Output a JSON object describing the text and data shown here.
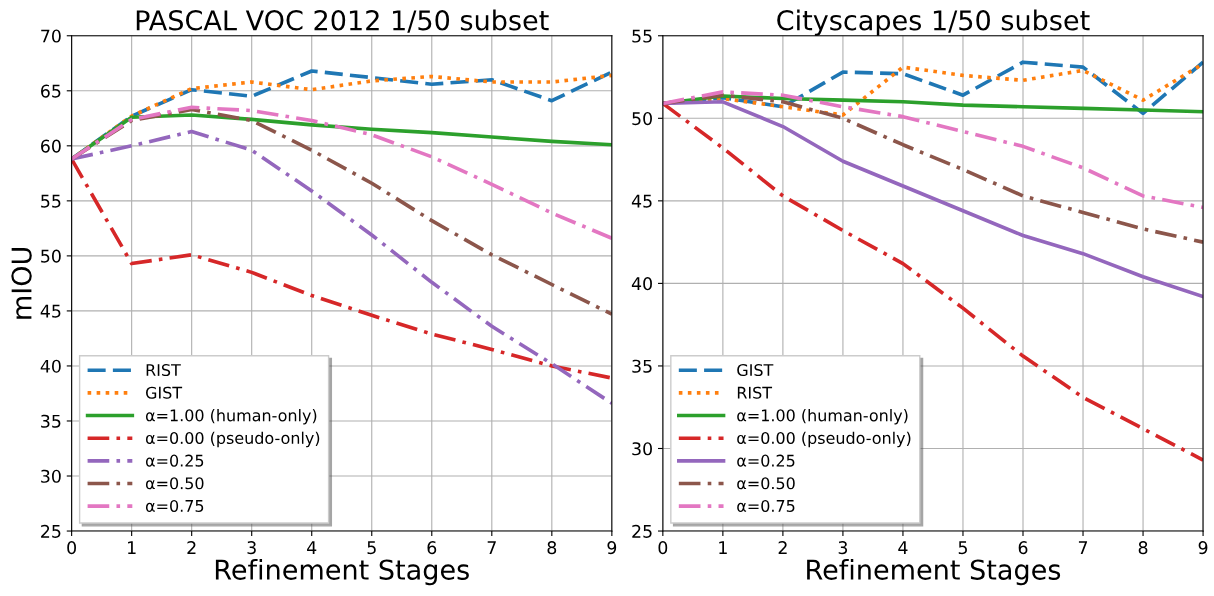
{
  "chart_data": [
    {
      "type": "line",
      "title": "PASCAL VOC 2012 1/50 subset",
      "xlabel": "Refinement Stages",
      "ylabel": "mIOU",
      "x": [
        0,
        1,
        2,
        3,
        4,
        5,
        6,
        7,
        8,
        9
      ],
      "xlim": [
        0,
        9
      ],
      "xticks": [
        0,
        1,
        2,
        3,
        4,
        5,
        6,
        7,
        8,
        9
      ],
      "ylim": [
        25,
        70
      ],
      "yticks": [
        25,
        30,
        35,
        40,
        45,
        50,
        55,
        60,
        65,
        70
      ],
      "grid": true,
      "legend": "bottom left",
      "series": [
        {
          "name": "RIST",
          "color": "#1f77b4",
          "line_style": "dashed",
          "values": [
            58.8,
            62.7,
            65.1,
            64.5,
            66.8,
            66.2,
            65.6,
            66.0,
            64.1,
            66.7
          ]
        },
        {
          "name": "GIST",
          "color": "#ff7f0e",
          "line_style": "dotted",
          "values": [
            58.8,
            62.7,
            65.2,
            65.8,
            65.1,
            65.9,
            66.3,
            65.8,
            65.8,
            66.4
          ]
        },
        {
          "name": "α=1.00 (human-only)",
          "color": "#2ca02c",
          "line_style": "solid",
          "values": [
            58.8,
            62.6,
            62.8,
            62.4,
            61.9,
            61.5,
            61.2,
            60.8,
            60.4,
            60.1
          ]
        },
        {
          "name": "α=0.00 (pseudo-only)",
          "color": "#d62728",
          "line_style": "dashdot",
          "values": [
            58.8,
            49.3,
            50.1,
            48.5,
            46.4,
            44.6,
            42.9,
            41.5,
            40.0,
            38.9
          ]
        },
        {
          "name": "α=0.25",
          "color": "#9467bd",
          "line_style": "dashdot",
          "values": [
            58.8,
            60.0,
            61.3,
            59.6,
            55.9,
            51.9,
            47.6,
            43.6,
            40.2,
            36.6
          ]
        },
        {
          "name": "α=0.50",
          "color": "#8c564b",
          "line_style": "dashdot",
          "values": [
            58.8,
            62.3,
            63.3,
            62.3,
            59.6,
            56.6,
            53.2,
            50.1,
            47.4,
            44.7
          ]
        },
        {
          "name": "α=0.75",
          "color": "#e377c2",
          "line_style": "dashdot",
          "values": [
            58.8,
            62.4,
            63.5,
            63.2,
            62.3,
            61.0,
            59.0,
            56.5,
            53.9,
            51.6
          ]
        }
      ]
    },
    {
      "type": "line",
      "title": "Cityscapes 1/50 subset",
      "xlabel": "Refinement Stages",
      "x": [
        0,
        1,
        2,
        3,
        4,
        5,
        6,
        7,
        8,
        9
      ],
      "xlim": [
        0,
        9
      ],
      "xticks": [
        0,
        1,
        2,
        3,
        4,
        5,
        6,
        7,
        8,
        9
      ],
      "ylim": [
        25,
        55
      ],
      "yticks": [
        25,
        30,
        35,
        40,
        45,
        50,
        55
      ],
      "grid": true,
      "legend": "bottom left",
      "series": [
        {
          "name": "GIST",
          "color": "#1f77b4",
          "line_style": "dashed",
          "values": [
            50.9,
            51.25,
            50.7,
            52.8,
            52.7,
            51.4,
            53.4,
            53.1,
            50.3,
            53.4
          ]
        },
        {
          "name": "RIST",
          "color": "#ff7f0e",
          "line_style": "dotted",
          "values": [
            50.9,
            51.2,
            50.7,
            50.2,
            53.1,
            52.6,
            52.3,
            52.9,
            51.1,
            53.3
          ]
        },
        {
          "name": "α=1.00 (human-only)",
          "color": "#2ca02c",
          "line_style": "solid",
          "values": [
            50.9,
            51.35,
            51.2,
            51.1,
            51.0,
            50.8,
            50.7,
            50.6,
            50.5,
            50.4
          ]
        },
        {
          "name": "α=0.00 (pseudo-only)",
          "color": "#d62728",
          "line_style": "dashdot",
          "values": [
            50.9,
            48.2,
            45.3,
            43.2,
            41.2,
            38.5,
            35.6,
            33.1,
            31.2,
            29.3
          ]
        },
        {
          "name": "α=0.25",
          "color": "#9467bd",
          "line_style": "solid",
          "values": [
            50.9,
            51.0,
            49.5,
            47.4,
            45.9,
            44.4,
            42.9,
            41.8,
            40.4,
            39.2
          ]
        },
        {
          "name": "α=0.50",
          "color": "#8c564b",
          "line_style": "dashdot",
          "values": [
            50.9,
            51.4,
            51.0,
            50.0,
            48.4,
            46.9,
            45.3,
            44.3,
            43.3,
            42.5
          ]
        },
        {
          "name": "α=0.75",
          "color": "#e377c2",
          "line_style": "dashdot",
          "values": [
            50.9,
            51.6,
            51.4,
            50.7,
            50.1,
            49.2,
            48.3,
            47.0,
            45.3,
            44.6
          ]
        }
      ]
    }
  ]
}
